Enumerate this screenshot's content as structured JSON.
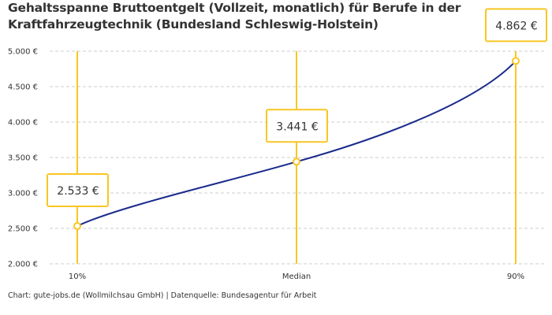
{
  "chart_data": {
    "type": "line",
    "title": "Gehaltsspanne Bruttoentgelt (Vollzeit, monatlich) für Berufe in der Kraftfahrzeugtechnik (Bundesland Schleswig-Holstein)",
    "categories": [
      "10%",
      "Median",
      "90%"
    ],
    "values": [
      2533,
      3441,
      4862
    ],
    "data_labels": [
      "2.533 €",
      "3.441 €",
      "4.862 €"
    ],
    "ylim": [
      2000,
      5000
    ],
    "yticks": [
      2000,
      2500,
      3000,
      3500,
      4000,
      4500,
      5000
    ],
    "ytick_labels": [
      "2.000 €",
      "2.500 €",
      "3.000 €",
      "3.500 €",
      "4.000 €",
      "4.500 €",
      "5.000 €"
    ],
    "grid": true,
    "xlabel": "",
    "ylabel": "",
    "colors": {
      "line": "#1a2a8c",
      "accent": "#f9c623",
      "grid": "#cccccc"
    }
  },
  "footer": "Chart: gute-jobs.de (Wollmilchsau GmbH) | Datenquelle: Bundesagentur für Arbeit"
}
